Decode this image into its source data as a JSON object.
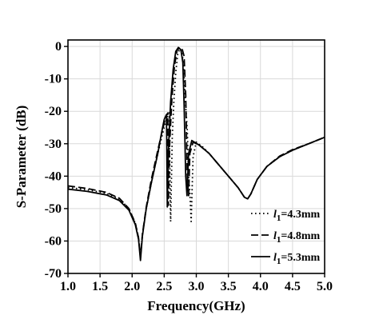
{
  "chart_data": {
    "type": "line",
    "xlabel": "Frequency(GHz)",
    "ylabel": "S-Parameter (dB)",
    "xlim": [
      1.0,
      5.0
    ],
    "ylim": [
      -70,
      2
    ],
    "grid": true,
    "legend_position": "bottom-right",
    "x_ticks": [
      "1.0",
      "1.5",
      "2.0",
      "2.5",
      "3.0",
      "3.5",
      "4.0",
      "4.5",
      "5.0"
    ],
    "y_ticks": [
      "0",
      "-10",
      "-20",
      "-30",
      "-40",
      "-50",
      "-60",
      "-70"
    ],
    "series": [
      {
        "name_prefix": "l",
        "name_sub": "1",
        "name_suffix": "=4.3mm",
        "dash": "dotted",
        "points": [
          [
            1.0,
            -43.5
          ],
          [
            1.3,
            -44.2
          ],
          [
            1.6,
            -45.3
          ],
          [
            1.8,
            -47.0
          ],
          [
            1.95,
            -50.0
          ],
          [
            2.05,
            -54.5
          ],
          [
            2.1,
            -59.0
          ],
          [
            2.13,
            -65.0
          ],
          [
            2.16,
            -58.0
          ],
          [
            2.22,
            -50.0
          ],
          [
            2.3,
            -42.0
          ],
          [
            2.4,
            -33.0
          ],
          [
            2.48,
            -26.5
          ],
          [
            2.54,
            -22.0
          ],
          [
            2.575,
            -20.5
          ],
          [
            2.6,
            -54.0
          ],
          [
            2.625,
            -28.0
          ],
          [
            2.65,
            -17.0
          ],
          [
            2.68,
            -8.0
          ],
          [
            2.71,
            -2.5
          ],
          [
            2.74,
            -0.7
          ],
          [
            2.77,
            -1.5
          ],
          [
            2.8,
            -5.0
          ],
          [
            2.83,
            -17.0
          ],
          [
            2.86,
            -26.0
          ],
          [
            2.88,
            -40.0
          ],
          [
            2.9,
            -45.0
          ],
          [
            2.92,
            -54.0
          ],
          [
            2.95,
            -34.0
          ],
          [
            3.0,
            -29.5
          ],
          [
            3.1,
            -31.0
          ],
          [
            3.2,
            -33.0
          ],
          [
            3.35,
            -36.5
          ],
          [
            3.5,
            -40.0
          ],
          [
            3.65,
            -43.5
          ],
          [
            3.75,
            -46.5
          ],
          [
            3.8,
            -47.0
          ],
          [
            3.85,
            -45.5
          ],
          [
            3.95,
            -41.0
          ],
          [
            4.1,
            -37.0
          ],
          [
            4.3,
            -34.0
          ],
          [
            4.5,
            -32.0
          ],
          [
            4.75,
            -30.0
          ],
          [
            5.0,
            -28.0
          ]
        ]
      },
      {
        "name_prefix": "l",
        "name_sub": "1",
        "name_suffix": "=4.8mm",
        "dash": "dashed",
        "points": [
          [
            1.0,
            -43.0
          ],
          [
            1.3,
            -43.8
          ],
          [
            1.6,
            -45.0
          ],
          [
            1.8,
            -46.8
          ],
          [
            1.95,
            -50.0
          ],
          [
            2.05,
            -54.5
          ],
          [
            2.1,
            -59.0
          ],
          [
            2.13,
            -65.0
          ],
          [
            2.16,
            -58.0
          ],
          [
            2.22,
            -49.5
          ],
          [
            2.3,
            -41.0
          ],
          [
            2.4,
            -32.0
          ],
          [
            2.47,
            -26.0
          ],
          [
            2.52,
            -22.0
          ],
          [
            2.555,
            -20.5
          ],
          [
            2.565,
            -49.0
          ],
          [
            2.585,
            -30.0
          ],
          [
            2.62,
            -16.0
          ],
          [
            2.66,
            -6.0
          ],
          [
            2.7,
            -1.2
          ],
          [
            2.74,
            -0.3
          ],
          [
            2.78,
            -0.8
          ],
          [
            2.81,
            -3.0
          ],
          [
            2.835,
            -15.0
          ],
          [
            2.86,
            -40.0
          ],
          [
            2.88,
            -46.0
          ],
          [
            2.9,
            -33.0
          ],
          [
            2.95,
            -29.5
          ],
          [
            3.05,
            -30.5
          ],
          [
            3.2,
            -33.0
          ],
          [
            3.35,
            -36.5
          ],
          [
            3.5,
            -40.0
          ],
          [
            3.65,
            -43.5
          ],
          [
            3.75,
            -46.5
          ],
          [
            3.8,
            -47.0
          ],
          [
            3.85,
            -45.5
          ],
          [
            3.95,
            -41.0
          ],
          [
            4.1,
            -37.0
          ],
          [
            4.3,
            -33.8
          ],
          [
            4.5,
            -31.8
          ],
          [
            4.75,
            -30.0
          ],
          [
            5.0,
            -28.0
          ]
        ]
      },
      {
        "name_prefix": "l",
        "name_sub": "1",
        "name_suffix": "=5.3mm",
        "dash": "solid",
        "points": [
          [
            1.0,
            -44.0
          ],
          [
            1.3,
            -44.7
          ],
          [
            1.6,
            -45.8
          ],
          [
            1.8,
            -47.5
          ],
          [
            1.95,
            -50.5
          ],
          [
            2.05,
            -55.0
          ],
          [
            2.1,
            -59.5
          ],
          [
            2.13,
            -66.0
          ],
          [
            2.16,
            -58.5
          ],
          [
            2.22,
            -50.0
          ],
          [
            2.3,
            -42.0
          ],
          [
            2.4,
            -33.0
          ],
          [
            2.46,
            -26.5
          ],
          [
            2.5,
            -22.5
          ],
          [
            2.535,
            -21.0
          ],
          [
            2.548,
            -49.5
          ],
          [
            2.565,
            -32.0
          ],
          [
            2.6,
            -17.0
          ],
          [
            2.64,
            -7.0
          ],
          [
            2.68,
            -1.5
          ],
          [
            2.72,
            -0.3
          ],
          [
            2.76,
            -1.0
          ],
          [
            2.79,
            -5.0
          ],
          [
            2.81,
            -18.0
          ],
          [
            2.835,
            -40.0
          ],
          [
            2.855,
            -46.0
          ],
          [
            2.88,
            -33.0
          ],
          [
            2.93,
            -29.0
          ],
          [
            3.05,
            -30.5
          ],
          [
            3.2,
            -33.0
          ],
          [
            3.35,
            -36.5
          ],
          [
            3.5,
            -40.0
          ],
          [
            3.65,
            -43.5
          ],
          [
            3.75,
            -46.5
          ],
          [
            3.8,
            -47.0
          ],
          [
            3.85,
            -45.5
          ],
          [
            3.95,
            -41.0
          ],
          [
            4.1,
            -37.0
          ],
          [
            4.3,
            -34.0
          ],
          [
            4.5,
            -32.0
          ],
          [
            4.75,
            -30.0
          ],
          [
            5.0,
            -28.0
          ]
        ]
      }
    ]
  }
}
